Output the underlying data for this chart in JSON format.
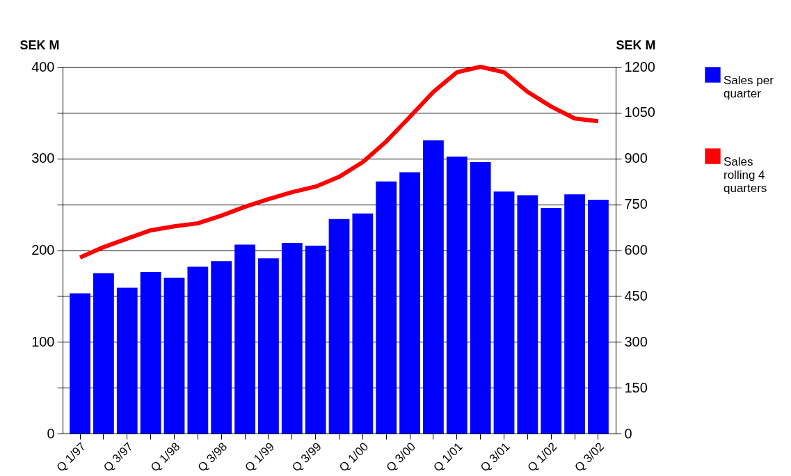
{
  "chart_data": {
    "type": "bar",
    "ylabel": "SEK M",
    "y2label": "SEK M",
    "categories": [
      "Q 1/97",
      null,
      "Q 3/97",
      null,
      "Q 1/98",
      null,
      "Q 3/98",
      null,
      "Q 1/99",
      null,
      "Q 3/99",
      null,
      "Q 1/00",
      null,
      "Q 3/00",
      null,
      "Q 1/01",
      null,
      "Q 3/01",
      null,
      "Q 1/02",
      null,
      "Q 3/02"
    ],
    "series": [
      {
        "name": "Sales per quarter",
        "color": "#0000ff",
        "values": [
          153,
          175,
          159,
          176,
          170,
          182,
          188,
          206,
          191,
          208,
          205,
          234,
          240,
          275,
          285,
          320,
          302,
          296,
          264,
          260,
          246,
          261,
          255
        ]
      },
      {
        "name": "Sales rolling 4 quarters",
        "type": "line",
        "axis": "y2",
        "color": "#ff0000",
        "values": [
          576,
          610,
          638,
          665,
          678,
          688,
          713,
          742,
          767,
          790,
          808,
          840,
          888,
          956,
          1036,
          1118,
          1182,
          1200,
          1182,
          1118,
          1070,
          1031,
          1022
        ]
      }
    ],
    "ylim": [
      0,
      400
    ],
    "yticks": [
      0,
      {
        "value": 50,
        "label": null
      },
      100,
      {
        "value": 150,
        "label": null
      },
      200,
      {
        "value": 250,
        "label": null
      },
      300,
      {
        "value": 350,
        "label": null
      },
      400
    ],
    "y2lim": [
      0,
      1200
    ],
    "y2ticks": [
      0,
      150,
      300,
      450,
      600,
      750,
      900,
      1050,
      1200
    ],
    "grid": "y",
    "legend": "right"
  }
}
